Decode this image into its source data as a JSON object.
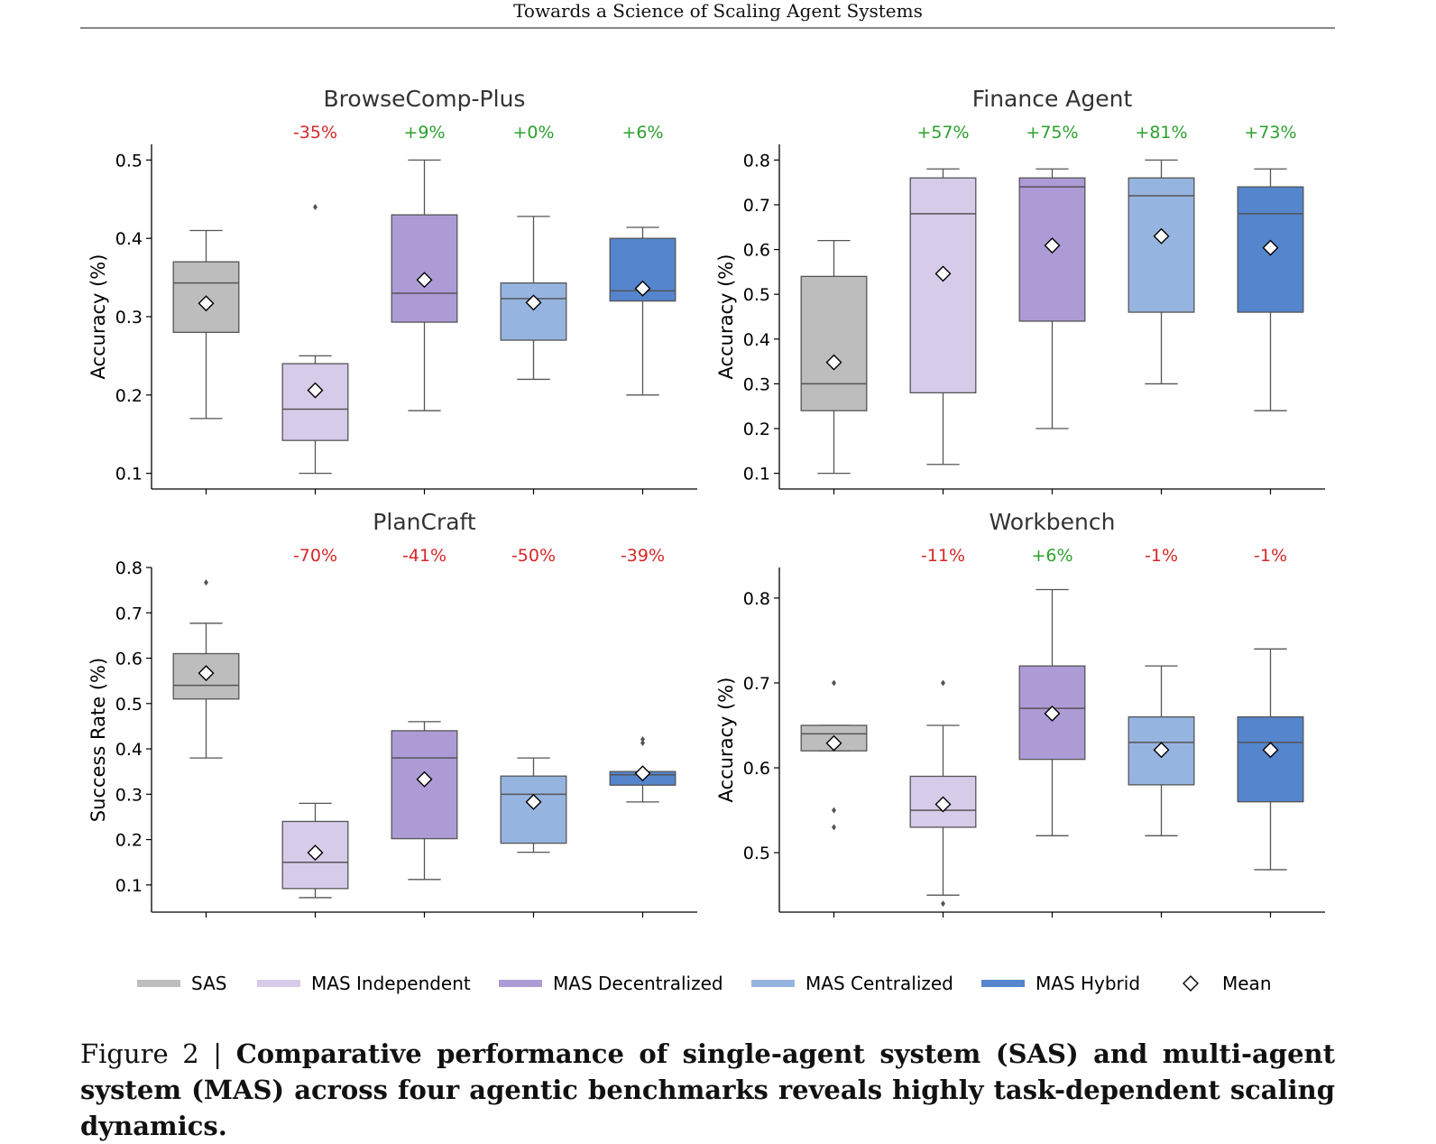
{
  "header": {
    "running_title": "Towards a Science of Scaling Agent Systems"
  },
  "legend": {
    "items": [
      {
        "label": "SAS",
        "color": "#bdbdbd"
      },
      {
        "label": "MAS Independent",
        "color": "#d6cbe9"
      },
      {
        "label": "MAS Decentralized",
        "color": "#ad9bd6"
      },
      {
        "label": "MAS Centralized",
        "color": "#96b4e0"
      },
      {
        "label": "MAS Hybrid",
        "color": "#5485cd"
      }
    ],
    "mean_label": "Mean"
  },
  "caption": {
    "figure_label": "Figure 2 |",
    "text": "Comparative performance of single-agent system (SAS) and multi-agent system (MAS) across four agentic benchmarks reveals highly task-dependent scaling dynamics."
  },
  "chart_data": [
    {
      "type": "box",
      "title": "BrowseComp-Plus",
      "ylabel": "Accuracy (%)",
      "ylim": [
        0.08,
        0.52
      ],
      "yticks": [
        "0.1",
        "0.2",
        "0.3",
        "0.4",
        "0.5"
      ],
      "ytick_values": [
        0.1,
        0.2,
        0.3,
        0.4,
        0.5
      ],
      "categories": [
        "SAS",
        "MAS Independent",
        "MAS Decentralized",
        "MAS Centralized",
        "MAS Hybrid"
      ],
      "annotations": [
        {
          "text": "",
          "color": ""
        },
        {
          "text": "-35%",
          "color": "#d62728"
        },
        {
          "text": "+9%",
          "color": "#2ca02c"
        },
        {
          "text": "+0%",
          "color": "#2ca02c"
        },
        {
          "text": "+6%",
          "color": "#2ca02c"
        }
      ],
      "boxes": [
        {
          "whisker_low": 0.17,
          "q1": 0.28,
          "median": 0.343,
          "q3": 0.37,
          "whisker_high": 0.41,
          "mean": 0.317,
          "outliers": []
        },
        {
          "whisker_low": 0.1,
          "q1": 0.142,
          "median": 0.182,
          "q3": 0.24,
          "whisker_high": 0.25,
          "mean": 0.206,
          "outliers": [
            0.44
          ]
        },
        {
          "whisker_low": 0.18,
          "q1": 0.293,
          "median": 0.33,
          "q3": 0.43,
          "whisker_high": 0.5,
          "mean": 0.347,
          "outliers": []
        },
        {
          "whisker_low": 0.22,
          "q1": 0.27,
          "median": 0.323,
          "q3": 0.343,
          "whisker_high": 0.428,
          "mean": 0.318,
          "outliers": []
        },
        {
          "whisker_low": 0.2,
          "q1": 0.32,
          "median": 0.333,
          "q3": 0.4,
          "whisker_high": 0.414,
          "mean": 0.336,
          "outliers": []
        }
      ]
    },
    {
      "type": "box",
      "title": "Finance Agent",
      "ylabel": "Accuracy (%)",
      "ylim": [
        0.065,
        0.835
      ],
      "yticks": [
        "0.1",
        "0.2",
        "0.3",
        "0.4",
        "0.5",
        "0.6",
        "0.7",
        "0.8"
      ],
      "ytick_values": [
        0.1,
        0.2,
        0.3,
        0.4,
        0.5,
        0.6,
        0.7,
        0.8
      ],
      "categories": [
        "SAS",
        "MAS Independent",
        "MAS Decentralized",
        "MAS Centralized",
        "MAS Hybrid"
      ],
      "annotations": [
        {
          "text": "",
          "color": ""
        },
        {
          "text": "+57%",
          "color": "#2ca02c"
        },
        {
          "text": "+75%",
          "color": "#2ca02c"
        },
        {
          "text": "+81%",
          "color": "#2ca02c"
        },
        {
          "text": "+73%",
          "color": "#2ca02c"
        }
      ],
      "boxes": [
        {
          "whisker_low": 0.1,
          "q1": 0.24,
          "median": 0.3,
          "q3": 0.54,
          "whisker_high": 0.62,
          "mean": 0.348,
          "outliers": []
        },
        {
          "whisker_low": 0.12,
          "q1": 0.28,
          "median": 0.68,
          "q3": 0.76,
          "whisker_high": 0.78,
          "mean": 0.546,
          "outliers": []
        },
        {
          "whisker_low": 0.2,
          "q1": 0.44,
          "median": 0.74,
          "q3": 0.76,
          "whisker_high": 0.78,
          "mean": 0.609,
          "outliers": []
        },
        {
          "whisker_low": 0.3,
          "q1": 0.46,
          "median": 0.72,
          "q3": 0.76,
          "whisker_high": 0.8,
          "mean": 0.63,
          "outliers": []
        },
        {
          "whisker_low": 0.24,
          "q1": 0.46,
          "median": 0.68,
          "q3": 0.74,
          "whisker_high": 0.78,
          "mean": 0.604,
          "outliers": []
        }
      ]
    },
    {
      "type": "box",
      "title": "PlanCraft",
      "ylabel": "Success Rate (%)",
      "ylim": [
        0.04,
        0.8
      ],
      "yticks": [
        "0.1",
        "0.2",
        "0.3",
        "0.4",
        "0.5",
        "0.6",
        "0.7",
        "0.8"
      ],
      "ytick_values": [
        0.1,
        0.2,
        0.3,
        0.4,
        0.5,
        0.6,
        0.7,
        0.8
      ],
      "categories": [
        "SAS",
        "MAS Independent",
        "MAS Decentralized",
        "MAS Centralized",
        "MAS Hybrid"
      ],
      "annotations": [
        {
          "text": "",
          "color": ""
        },
        {
          "text": "-70%",
          "color": "#d62728"
        },
        {
          "text": "-41%",
          "color": "#d62728"
        },
        {
          "text": "-50%",
          "color": "#d62728"
        },
        {
          "text": "-39%",
          "color": "#d62728"
        }
      ],
      "boxes": [
        {
          "whisker_low": 0.38,
          "q1": 0.51,
          "median": 0.54,
          "q3": 0.61,
          "whisker_high": 0.677,
          "mean": 0.567,
          "outliers": [
            0.767
          ]
        },
        {
          "whisker_low": 0.072,
          "q1": 0.092,
          "median": 0.15,
          "q3": 0.24,
          "whisker_high": 0.28,
          "mean": 0.171,
          "outliers": []
        },
        {
          "whisker_low": 0.112,
          "q1": 0.202,
          "median": 0.38,
          "q3": 0.44,
          "whisker_high": 0.46,
          "mean": 0.333,
          "outliers": []
        },
        {
          "whisker_low": 0.172,
          "q1": 0.192,
          "median": 0.3,
          "q3": 0.34,
          "whisker_high": 0.38,
          "mean": 0.283,
          "outliers": []
        },
        {
          "whisker_low": 0.283,
          "q1": 0.32,
          "median": 0.343,
          "q3": 0.35,
          "whisker_high": 0.35,
          "mean": 0.346,
          "outliers": [
            0.413,
            0.421
          ]
        }
      ]
    },
    {
      "type": "box",
      "title": "Workbench",
      "ylabel": "Accuracy (%)",
      "ylim": [
        0.43,
        0.836
      ],
      "yticks": [
        "0.5",
        "0.6",
        "0.7",
        "0.8"
      ],
      "ytick_values": [
        0.5,
        0.6,
        0.7,
        0.8
      ],
      "categories": [
        "SAS",
        "MAS Independent",
        "MAS Decentralized",
        "MAS Centralized",
        "MAS Hybrid"
      ],
      "annotations": [
        {
          "text": "",
          "color": ""
        },
        {
          "text": "-11%",
          "color": "#d62728"
        },
        {
          "text": "+6%",
          "color": "#2ca02c"
        },
        {
          "text": "-1%",
          "color": "#d62728"
        },
        {
          "text": "-1%",
          "color": "#d62728"
        }
      ],
      "boxes": [
        {
          "whisker_low": 0.62,
          "q1": 0.62,
          "median": 0.64,
          "q3": 0.65,
          "whisker_high": 0.65,
          "mean": 0.629,
          "outliers": [
            0.7,
            0.55,
            0.53
          ]
        },
        {
          "whisker_low": 0.45,
          "q1": 0.53,
          "median": 0.55,
          "q3": 0.59,
          "whisker_high": 0.65,
          "mean": 0.557,
          "outliers": [
            0.7,
            0.44
          ]
        },
        {
          "whisker_low": 0.52,
          "q1": 0.61,
          "median": 0.67,
          "q3": 0.72,
          "whisker_high": 0.81,
          "mean": 0.664,
          "outliers": []
        },
        {
          "whisker_low": 0.52,
          "q1": 0.58,
          "median": 0.63,
          "q3": 0.66,
          "whisker_high": 0.72,
          "mean": 0.621,
          "outliers": []
        },
        {
          "whisker_low": 0.48,
          "q1": 0.56,
          "median": 0.63,
          "q3": 0.66,
          "whisker_high": 0.74,
          "mean": 0.621,
          "outliers": []
        }
      ]
    }
  ]
}
